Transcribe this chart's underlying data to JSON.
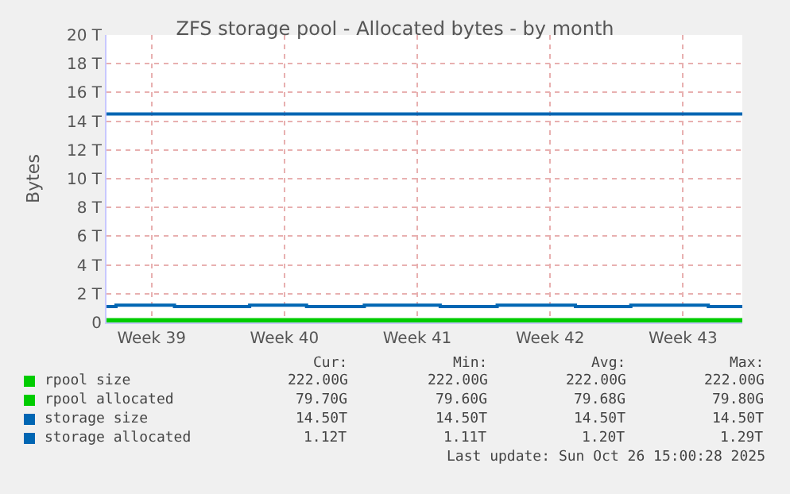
{
  "chart_data": {
    "type": "step",
    "title": "ZFS storage pool - Allocated bytes - by month",
    "ylabel": "Bytes",
    "x": [
      "2025-09-23T03:00",
      "2025-10-26T15:00"
    ],
    "xlim": [
      "2025-09-23T03:00",
      "2025-10-26T15:00"
    ],
    "xticks": [
      {
        "value": "2025-09-25T12:00",
        "label": "Week 39"
      },
      {
        "value": "2025-10-02T12:00",
        "label": "Week 40"
      },
      {
        "value": "2025-10-09T12:00",
        "label": "Week 41"
      },
      {
        "value": "2025-10-16T12:00",
        "label": "Week 42"
      },
      {
        "value": "2025-10-23T12:00",
        "label": "Week 43"
      }
    ],
    "ylim": [
      0,
      20
    ],
    "yticks": [
      0,
      {
        "value": 2,
        "label": "2 T"
      },
      {
        "value": 4,
        "label": "4 T"
      },
      {
        "value": 6,
        "label": "6 T"
      },
      {
        "value": 8,
        "label": "8 T"
      },
      {
        "value": 10,
        "label": "10 T"
      },
      {
        "value": 12,
        "label": "12 T"
      },
      {
        "value": 14,
        "label": "14 T"
      },
      {
        "value": 16,
        "label": "16 T"
      },
      {
        "value": 18,
        "label": "18 T"
      },
      {
        "value": 20,
        "label": "20 T"
      }
    ],
    "series": [
      {
        "name": "rpool size",
        "color": "#00cc00",
        "values": [
          0.2,
          0.2
        ]
      },
      {
        "name": "rpool allocated",
        "color": "#00cc00",
        "values": [
          0.1,
          0.1
        ]
      },
      {
        "name": "storage size",
        "color": "#0066b3",
        "values": [
          14.5,
          14.5
        ]
      },
      {
        "name": "storage allocated",
        "color": "#0066b3",
        "x": [
          "2025-09-23T03:00",
          "2025-09-23T15:00",
          "2025-09-26T17:00",
          "2025-09-30T16:00",
          "2025-10-03T16:00",
          "2025-10-06T17:00",
          "2025-10-10T17:00",
          "2025-10-13T17:00",
          "2025-10-17T20:00",
          "2025-10-20T18:00",
          "2025-10-24T20:00",
          "2025-10-26T15:00"
        ],
        "values": [
          1.1,
          1.2,
          1.1,
          1.2,
          1.1,
          1.2,
          1.1,
          1.2,
          1.1,
          1.2,
          1.1,
          1.1
        ]
      }
    ],
    "grid": true,
    "legend": "bottom",
    "annotations": [
      "Cur:",
      "Min:",
      "Avg:",
      "Max:",
      "222.00G",
      "222.00G",
      "222.00G",
      "222.00G",
      "79.70G",
      "79.60G",
      "79.68G",
      "79.80G",
      "14.50T",
      "14.50T",
      "14.50T",
      "14.50T",
      "1.12T",
      "1.11T",
      "1.20T",
      "1.29T",
      "Last update: Sun Oct 26 15:00:28 2025"
    ]
  }
}
